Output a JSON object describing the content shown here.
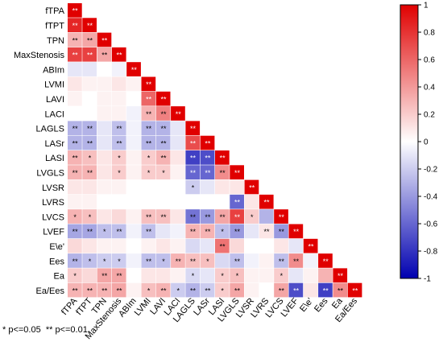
{
  "chart_data": {
    "type": "heatmap",
    "title": "",
    "xlabel": "",
    "ylabel": "",
    "variables": [
      "fTPA",
      "fTPT",
      "TPN",
      "MaxStenosis",
      "ABIm",
      "LVMI",
      "LAVI",
      "LACI",
      "LAGLS",
      "LASr",
      "LASI",
      "LVGLS",
      "LVSR",
      "LVRS",
      "LVCS",
      "LVEF",
      "E\\e'",
      "Ees",
      "Ea",
      "Ea/Ees"
    ],
    "x_tick_labels": [
      "fTPA",
      "fTPT",
      "TPN",
      "MaxStenosis",
      "ABIm",
      "LVMI",
      "LAVI",
      "LACI",
      "LAGLS",
      "LASr",
      "LASI",
      "LVGLS",
      "LVSR",
      "LVRS",
      "LVCS",
      "LVEF",
      "E\\e'",
      "Ees",
      "Ea",
      "Ea/Ees"
    ],
    "y_tick_labels": [
      "fTPA",
      "fTPT",
      "TPN",
      "MaxStenosis",
      "ABIm",
      "LVMI",
      "LAVI",
      "LACI",
      "LAGLS",
      "LASr",
      "LASI",
      "LVGLS",
      "LVSR",
      "LVRS",
      "LVCS",
      "LVEF",
      "E\\e'",
      "Ees",
      "Ea",
      "Ea/Ees"
    ],
    "matrix": [
      [
        1.0
      ],
      [
        0.85,
        1.0
      ],
      [
        0.3,
        0.35,
        1.0
      ],
      [
        0.75,
        0.75,
        0.35,
        1.0
      ],
      [
        -0.1,
        -0.1,
        0.0,
        -0.05,
        1.0
      ],
      [
        0.1,
        0.05,
        0.05,
        0.1,
        0.05,
        1.0
      ],
      [
        0.05,
        0.0,
        0.05,
        0.05,
        0.0,
        0.6,
        1.0
      ],
      [
        0.0,
        0.0,
        0.05,
        0.05,
        -0.05,
        0.3,
        0.5,
        1.0
      ],
      [
        -0.3,
        -0.3,
        -0.1,
        -0.25,
        -0.05,
        -0.3,
        -0.3,
        -0.1,
        1.0
      ],
      [
        -0.3,
        -0.3,
        -0.1,
        -0.25,
        -0.05,
        -0.3,
        -0.3,
        -0.1,
        0.7,
        1.0
      ],
      [
        0.3,
        0.25,
        0.1,
        0.2,
        0.05,
        0.2,
        0.3,
        0.1,
        -0.75,
        -0.7,
        1.0
      ],
      [
        0.3,
        0.3,
        0.1,
        0.2,
        0.05,
        0.2,
        0.2,
        0.05,
        -0.6,
        -0.6,
        0.45,
        1.0
      ],
      [
        0.1,
        0.1,
        0.05,
        0.05,
        0.0,
        0.0,
        0.0,
        0.0,
        -0.2,
        -0.1,
        0.1,
        0.1,
        1.0
      ],
      [
        0.05,
        0.05,
        0.0,
        0.0,
        0.0,
        0.0,
        0.0,
        0.0,
        0.0,
        0.0,
        0.0,
        -0.6,
        0.1,
        1.0
      ],
      [
        0.3,
        0.25,
        0.1,
        0.15,
        0.05,
        0.25,
        0.25,
        0.1,
        -0.55,
        -0.4,
        0.35,
        0.75,
        0.2,
        -0.3,
        1.0
      ],
      [
        -0.35,
        -0.35,
        -0.25,
        -0.25,
        -0.05,
        -0.25,
        -0.1,
        -0.05,
        0.3,
        0.3,
        -0.25,
        -0.4,
        -0.1,
        0.1,
        -0.4,
        1.0
      ],
      [
        0.15,
        0.1,
        0.05,
        0.05,
        0.0,
        0.05,
        0.1,
        0.05,
        -0.15,
        -0.1,
        0.55,
        0.15,
        0.0,
        0.0,
        0.1,
        -0.1,
        1.0
      ],
      [
        -0.3,
        -0.25,
        -0.2,
        -0.2,
        -0.05,
        -0.25,
        -0.25,
        0.3,
        0.25,
        0.25,
        -0.15,
        -0.25,
        -0.05,
        0.05,
        -0.25,
        0.45,
        -0.05,
        1.0
      ],
      [
        0.2,
        0.15,
        0.35,
        0.35,
        0.0,
        0.1,
        0.1,
        0.05,
        -0.15,
        -0.1,
        0.2,
        0.25,
        0.05,
        0.05,
        0.2,
        -0.1,
        0.05,
        0.3,
        1.0
      ],
      [
        0.3,
        0.3,
        0.3,
        0.35,
        0.05,
        0.25,
        0.3,
        -0.2,
        -0.3,
        -0.2,
        0.2,
        0.35,
        0.05,
        0.0,
        0.35,
        -0.7,
        0.1,
        -0.75,
        0.45,
        1.0
      ]
    ],
    "significance": [
      [
        "**"
      ],
      [
        "**",
        "**"
      ],
      [
        "**",
        "**",
        "**"
      ],
      [
        "**",
        "**",
        "**",
        "**"
      ],
      [
        "",
        "",
        "",
        "",
        "**"
      ],
      [
        "",
        "",
        "",
        "",
        "",
        "**"
      ],
      [
        "",
        "",
        "",
        "",
        "",
        "**",
        "**"
      ],
      [
        "",
        "",
        "",
        "",
        "",
        "**",
        "**",
        "**"
      ],
      [
        "**",
        "**",
        "",
        "**",
        "",
        "**",
        "**",
        "",
        "**"
      ],
      [
        "**",
        "**",
        "",
        "**",
        "",
        "**",
        "**",
        "",
        "**",
        "**"
      ],
      [
        "**",
        "*",
        "",
        "*",
        "",
        "*",
        "**",
        "",
        "**",
        "**",
        "**"
      ],
      [
        "**",
        "**",
        "",
        "*",
        "",
        "*",
        "*",
        "",
        "**",
        "**",
        "**",
        "**"
      ],
      [
        "",
        "",
        "",
        "",
        "",
        "",
        "",
        "",
        "*",
        "",
        "",
        "",
        "**"
      ],
      [
        "",
        "",
        "",
        "",
        "",
        "",
        "",
        "",
        "",
        "",
        "",
        "**",
        "",
        "**"
      ],
      [
        "*",
        "*",
        "",
        "",
        "",
        "**",
        "**",
        "",
        "**",
        "**",
        "**",
        "**",
        "*",
        "",
        "**"
      ],
      [
        "**",
        "**",
        "*",
        "**",
        "",
        "**",
        "",
        "",
        "**",
        "**",
        "*",
        "**",
        "",
        "**",
        "**",
        "**"
      ],
      [
        "",
        "",
        "",
        "",
        "",
        "",
        "",
        "",
        "",
        "",
        "**",
        "",
        "",
        "",
        "",
        "",
        "**"
      ],
      [
        "**",
        "*",
        "*",
        "*",
        "",
        "**",
        "*",
        "**",
        "**",
        "*",
        "",
        "**",
        "",
        "",
        "**",
        "**",
        "",
        "**"
      ],
      [
        "*",
        "",
        "**",
        "**",
        "",
        "",
        "",
        "",
        "*",
        "",
        "*",
        "*",
        "",
        "",
        "*",
        "",
        "",
        "",
        "**"
      ],
      [
        "**",
        "**",
        "**",
        "**",
        "",
        "*",
        "**",
        "*",
        "**",
        "**",
        "*",
        "**",
        "",
        "",
        "**",
        "**",
        "",
        "**",
        "**",
        "**"
      ]
    ],
    "colorbar": {
      "min": -1,
      "max": 1,
      "ticks": [
        1,
        0.8,
        0.6,
        0.4,
        0.2,
        0,
        -0.2,
        -0.4,
        -0.6,
        -0.8,
        -1
      ],
      "tick_labels": [
        "1",
        "0.8",
        "0.6",
        "0.4",
        "0.2",
        "0",
        "-0.2",
        "-0.4",
        "-0.6",
        "-0.8",
        "-1"
      ],
      "colors": {
        "negative": "#0000b0",
        "zero": "#ffffff",
        "positive": "#e00000"
      }
    },
    "footnote": "* p<=0.05  ** p<=0.01"
  }
}
